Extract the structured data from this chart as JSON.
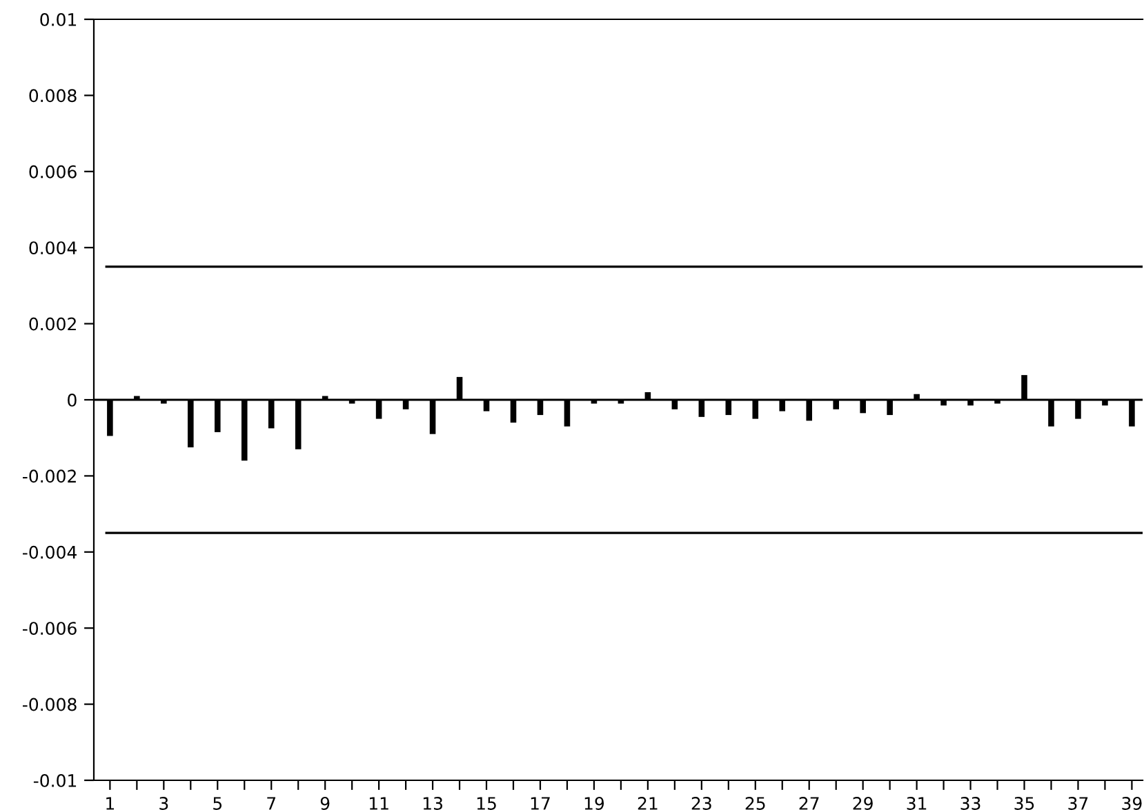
{
  "chart_data": {
    "type": "bar",
    "categories": [
      "1",
      null,
      "3",
      null,
      "5",
      null,
      "7",
      null,
      "9",
      null,
      "11",
      null,
      "13",
      null,
      "15",
      null,
      "17",
      null,
      "19",
      null,
      "21",
      null,
      "23",
      null,
      "25",
      null,
      "27",
      null,
      "29",
      null,
      "31",
      null,
      "33",
      null,
      "35",
      null,
      "37",
      null,
      "39"
    ],
    "values": [
      -0.00095,
      0.0001,
      -0.0001,
      -0.00125,
      -0.00085,
      -0.0016,
      -0.00075,
      -0.0013,
      0.0001,
      -0.0001,
      -0.0005,
      -0.00025,
      -0.0009,
      0.0006,
      -0.0003,
      -0.0006,
      -0.0004,
      -0.0007,
      -0.0001,
      -0.0001,
      0.0002,
      -0.00025,
      -0.00045,
      -0.0004,
      -0.0005,
      -0.0003,
      -0.00055,
      -0.00025,
      -0.00035,
      -0.0004,
      0.00015,
      -0.00015,
      -0.00015,
      -0.0001,
      0.00065,
      -0.0007,
      -0.0005,
      -0.00015,
      -0.0007
    ],
    "color": "#000000",
    "ylim": [
      -0.01,
      0.01
    ],
    "yticks": [
      -0.01,
      -0.008,
      -0.006,
      -0.004,
      -0.002,
      0,
      0.002,
      0.004,
      0.006,
      0.008,
      0.01
    ],
    "ref_lines": [
      {
        "axis": "y",
        "value": 0.0035,
        "color": "#000000"
      },
      {
        "axis": "y",
        "value": -0.0035,
        "color": "#000000"
      }
    ]
  }
}
